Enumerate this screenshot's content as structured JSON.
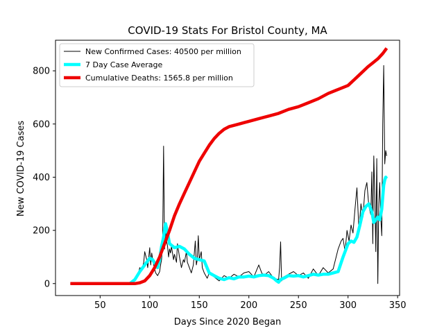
{
  "chart_data": {
    "type": "line",
    "title": "COVID-19 Stats For Bristol County, MA",
    "xlabel": "Days Since 2020 Began",
    "ylabel": "New COVID-19 Cases",
    "xlim": [
      5,
      352
    ],
    "ylim": [
      -45,
      915
    ],
    "xticks": [
      50,
      100,
      150,
      200,
      250,
      300,
      350
    ],
    "yticks": [
      0,
      200,
      400,
      600,
      800
    ],
    "grid": false,
    "legend_position": "top-left",
    "series": [
      {
        "name": "New Confirmed Cases: 40500 per million",
        "color": "#000000",
        "line_width": 1,
        "x": [
          20,
          80,
          85,
          88,
          90,
          92,
          94,
          95,
          97,
          98,
          100,
          101,
          102,
          103,
          104,
          105,
          106,
          108,
          110,
          111,
          112,
          113,
          114,
          115,
          116,
          117,
          118,
          119,
          120,
          121,
          122,
          124,
          125,
          127,
          128,
          130,
          132,
          134,
          135,
          137,
          138,
          140,
          142,
          144,
          146,
          147,
          148,
          149,
          150,
          152,
          153,
          154,
          155,
          158,
          160,
          165,
          170,
          175,
          180,
          185,
          190,
          195,
          200,
          205,
          210,
          213,
          215,
          220,
          225,
          230,
          231,
          232,
          233,
          235,
          240,
          245,
          250,
          255,
          260,
          265,
          270,
          275,
          280,
          285,
          290,
          293,
          295,
          297,
          299,
          301,
          303,
          305,
          307,
          309,
          311,
          313,
          315,
          317,
          319,
          321,
          323,
          324,
          325,
          326,
          327,
          328,
          329,
          330,
          331,
          332,
          333,
          334,
          335,
          336,
          337,
          338,
          339
        ],
        "y": [
          0,
          0,
          15,
          30,
          60,
          50,
          80,
          120,
          90,
          60,
          135,
          70,
          115,
          90,
          70,
          55,
          40,
          30,
          45,
          70,
          90,
          150,
          517,
          130,
          200,
          160,
          140,
          100,
          130,
          115,
          140,
          90,
          110,
          80,
          150,
          100,
          60,
          90,
          80,
          120,
          80,
          60,
          40,
          70,
          160,
          70,
          90,
          180,
          90,
          120,
          60,
          50,
          40,
          20,
          40,
          25,
          10,
          30,
          20,
          35,
          25,
          40,
          45,
          25,
          70,
          40,
          30,
          45,
          20,
          15,
          60,
          157,
          10,
          25,
          35,
          45,
          30,
          40,
          20,
          55,
          30,
          60,
          40,
          55,
          130,
          160,
          170,
          120,
          200,
          160,
          220,
          190,
          280,
          360,
          200,
          300,
          250,
          350,
          380,
          290,
          260,
          420,
          150,
          480,
          320,
          120,
          470,
          0,
          300,
          380,
          250,
          180,
          600,
          820,
          450,
          500,
          480
        ]
      },
      {
        "name": "7 Day Case Average",
        "color": "#00ffff",
        "line_width": 4.5,
        "x": [
          80,
          85,
          90,
          95,
          100,
          103,
          106,
          108,
          110,
          112,
          114,
          116,
          118,
          120,
          125,
          130,
          135,
          140,
          145,
          150,
          155,
          160,
          165,
          170,
          175,
          180,
          185,
          190,
          195,
          200,
          205,
          210,
          215,
          220,
          225,
          228,
          230,
          232,
          235,
          240,
          245,
          250,
          255,
          260,
          265,
          270,
          275,
          280,
          285,
          290,
          295,
          300,
          303,
          306,
          309,
          312,
          315,
          318,
          321,
          324,
          326,
          328,
          330,
          332,
          334,
          336,
          337,
          338,
          339
        ],
        "y": [
          0,
          15,
          45,
          70,
          95,
          90,
          70,
          60,
          90,
          140,
          175,
          225,
          190,
          150,
          135,
          140,
          130,
          110,
          95,
          90,
          85,
          40,
          30,
          20,
          15,
          22,
          18,
          25,
          25,
          28,
          25,
          30,
          32,
          30,
          20,
          10,
          5,
          15,
          20,
          30,
          28,
          30,
          25,
          30,
          35,
          32,
          35,
          35,
          40,
          45,
          100,
          150,
          160,
          155,
          175,
          220,
          270,
          290,
          300,
          270,
          230,
          240,
          250,
          240,
          280,
          370,
          390,
          400,
          395
        ]
      },
      {
        "name": "Cumulative Deaths: 1565.8 per million",
        "color": "#ee0000",
        "line_width": 4.5,
        "x": [
          20,
          80,
          85,
          90,
          95,
          100,
          105,
          110,
          115,
          120,
          125,
          130,
          135,
          140,
          145,
          150,
          155,
          160,
          165,
          170,
          175,
          180,
          185,
          190,
          195,
          200,
          210,
          220,
          230,
          240,
          250,
          260,
          270,
          280,
          290,
          300,
          310,
          320,
          325,
          330,
          335,
          339
        ],
        "y": [
          0,
          0,
          0,
          3,
          10,
          30,
          60,
          100,
          150,
          200,
          255,
          300,
          340,
          380,
          420,
          460,
          490,
          520,
          545,
          565,
          580,
          590,
          595,
          600,
          605,
          610,
          620,
          630,
          640,
          655,
          665,
          680,
          695,
          715,
          730,
          745,
          780,
          815,
          830,
          845,
          865,
          885
        ]
      }
    ]
  }
}
